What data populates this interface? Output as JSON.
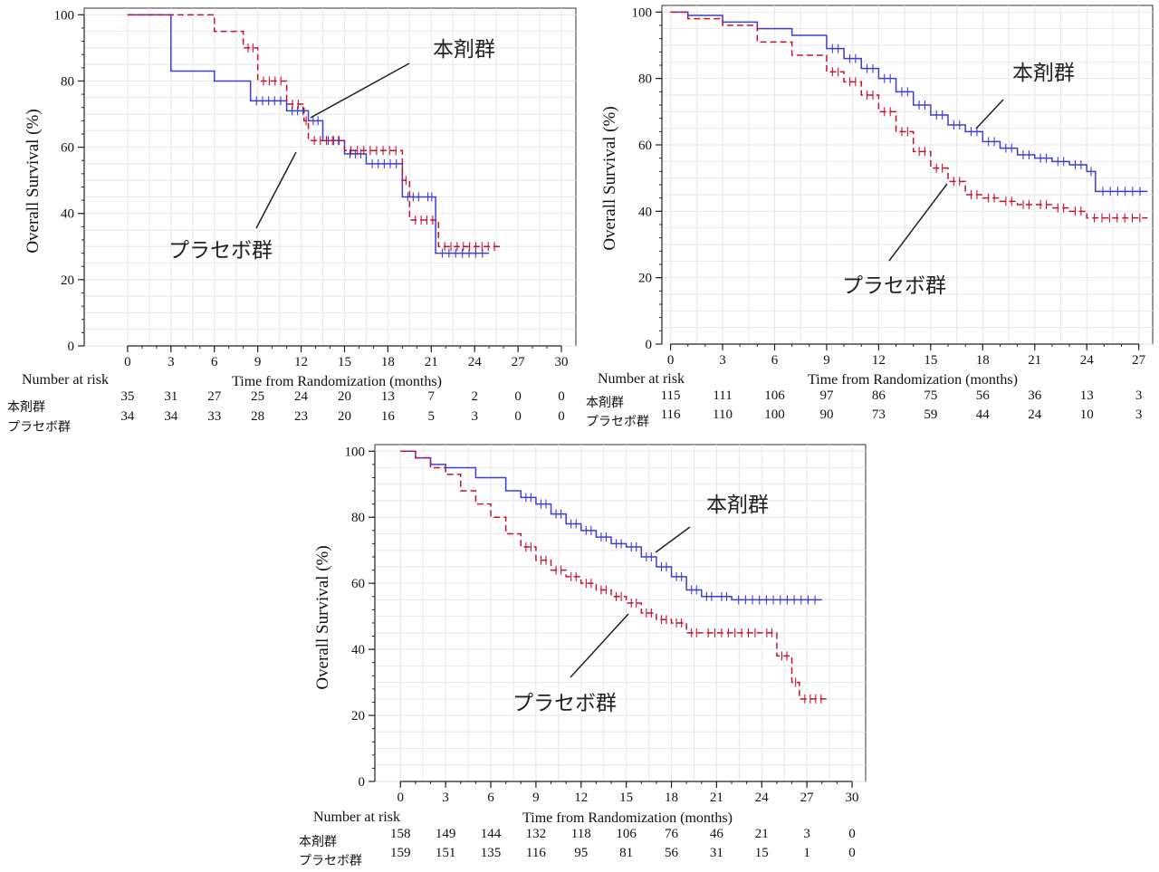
{
  "chart_data": [
    {
      "type": "line",
      "ylabel": "Overall Survival (%)",
      "xlabel": "Time from Randomization (months)",
      "xlim": [
        -3,
        31
      ],
      "ylim": [
        0,
        102
      ],
      "xticks": [
        0,
        3,
        6,
        9,
        12,
        15,
        18,
        21,
        24,
        27,
        30
      ],
      "yticks": [
        0,
        20,
        40,
        60,
        80,
        100
      ],
      "grid": true,
      "risk_header": "Number at risk",
      "risk_times": [
        0,
        3,
        6,
        9,
        12,
        15,
        18,
        21,
        24,
        27,
        30
      ],
      "series": [
        {
          "name": "本剤群",
          "color": "#3b3bdc",
          "dash": false,
          "x": [
            0,
            2.5,
            3.0,
            6.0,
            8.5,
            11.0,
            12.5,
            13.5,
            15.0,
            16.5,
            19.0,
            20.5,
            21.3,
            25.0
          ],
          "y": [
            100,
            100,
            83,
            80,
            74,
            71,
            68,
            62,
            58,
            55,
            45,
            45,
            28,
            28
          ],
          "risk": [
            35,
            31,
            27,
            25,
            24,
            20,
            13,
            7,
            2,
            0,
            0
          ]
        },
        {
          "name": "プラセボ群",
          "color": "#c8102e",
          "dash": true,
          "x": [
            0,
            3.0,
            6.0,
            8.0,
            9.0,
            11.0,
            12.2,
            12.5,
            15.0,
            19.0,
            19.5,
            21.5,
            25.8
          ],
          "y": [
            100,
            100,
            95,
            90,
            80,
            73,
            68,
            62,
            59,
            50,
            38,
            30,
            30
          ],
          "risk": [
            34,
            34,
            33,
            28,
            23,
            20,
            16,
            5,
            3,
            0,
            0
          ]
        }
      ]
    },
    {
      "type": "line",
      "ylabel": "Overall Survival (%)",
      "xlabel": "Time from Randomization (months)",
      "xlim": [
        -0.5,
        27.8
      ],
      "ylim": [
        0,
        102
      ],
      "xticks": [
        0,
        3,
        6,
        9,
        12,
        15,
        18,
        21,
        24,
        27
      ],
      "yticks": [
        0,
        20,
        40,
        60,
        80,
        100
      ],
      "grid": true,
      "risk_header": "Number at risk",
      "risk_times": [
        0,
        3,
        6,
        9,
        12,
        15,
        18,
        21,
        24,
        27
      ],
      "series": [
        {
          "name": "本剤群",
          "color": "#3b3bdc",
          "dash": false,
          "x": [
            0,
            1,
            3,
            5,
            7,
            9,
            10,
            11,
            12,
            13,
            14,
            15,
            16,
            17,
            18,
            19,
            20,
            21,
            22,
            23,
            24,
            24.5,
            27.5
          ],
          "y": [
            100,
            99,
            97,
            95,
            93,
            89,
            86,
            83,
            80,
            76,
            72,
            69,
            66,
            64,
            61,
            59,
            57,
            56,
            55,
            54,
            52,
            46,
            46
          ],
          "risk": [
            115,
            111,
            106,
            97,
            86,
            75,
            56,
            36,
            13,
            3
          ]
        },
        {
          "name": "プラセボ群",
          "color": "#c8102e",
          "dash": true,
          "x": [
            0,
            1,
            3,
            5,
            7,
            9,
            10,
            11,
            12,
            13,
            14,
            15,
            16,
            17,
            18,
            19,
            20,
            21,
            22,
            23,
            24,
            27.5
          ],
          "y": [
            100,
            98,
            96,
            91,
            87,
            82,
            79,
            75,
            70,
            64,
            58,
            53,
            49,
            45,
            44,
            43,
            42,
            42,
            41,
            40,
            38,
            38
          ],
          "risk": [
            116,
            110,
            100,
            90,
            73,
            59,
            44,
            24,
            10,
            3
          ]
        }
      ]
    },
    {
      "type": "line",
      "ylabel": "Overall Survival (%)",
      "xlabel": "Time from Randomization (months)",
      "xlim": [
        -1.7,
        30.9
      ],
      "ylim": [
        0,
        102
      ],
      "xticks": [
        0,
        3,
        6,
        9,
        12,
        15,
        18,
        21,
        24,
        27,
        30
      ],
      "yticks": [
        0,
        20,
        40,
        60,
        80,
        100
      ],
      "grid": true,
      "risk_header": "Number at risk",
      "risk_times": [
        0,
        3,
        6,
        9,
        12,
        15,
        18,
        21,
        24,
        27,
        30
      ],
      "series": [
        {
          "name": "本剤群",
          "color": "#3b3bdc",
          "dash": false,
          "x": [
            0,
            1,
            2,
            3,
            5,
            7,
            8,
            9,
            10,
            11,
            12,
            13,
            14,
            15,
            16,
            17,
            18,
            19,
            20,
            21,
            22,
            28
          ],
          "y": [
            100,
            98,
            96,
            95,
            92,
            88,
            86,
            84,
            81,
            78,
            76,
            74,
            72,
            71,
            68,
            65,
            62,
            58,
            56,
            56,
            55,
            55
          ],
          "risk": [
            158,
            149,
            144,
            132,
            118,
            106,
            76,
            46,
            21,
            3,
            0
          ]
        },
        {
          "name": "プラセボ群",
          "color": "#c8102e",
          "dash": true,
          "x": [
            0,
            1,
            2,
            3,
            4,
            5,
            6,
            7,
            8,
            9,
            10,
            11,
            12,
            13,
            14,
            15,
            16,
            17,
            18,
            19,
            20,
            24,
            25,
            26,
            26.5,
            28.3
          ],
          "y": [
            100,
            98,
            95,
            93,
            88,
            84,
            80,
            75,
            71,
            67,
            64,
            62,
            60,
            58,
            56,
            54,
            51,
            49,
            48,
            45,
            45,
            45,
            38,
            30,
            25,
            25
          ],
          "risk": [
            159,
            151,
            135,
            116,
            95,
            81,
            56,
            31,
            15,
            1,
            0
          ]
        }
      ]
    }
  ]
}
